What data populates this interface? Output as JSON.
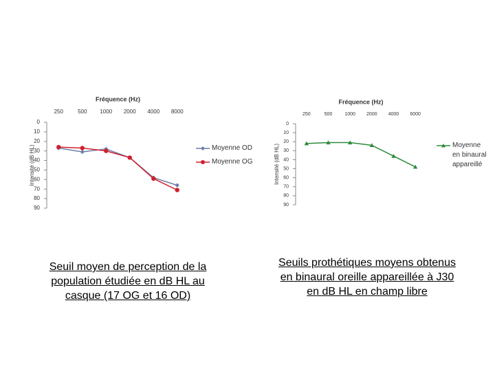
{
  "chart_data": [
    {
      "type": "line",
      "title": "Fréquence (Hz)",
      "y_label": "Intensité (dB HL)",
      "categories": [
        "250",
        "500",
        "1000",
        "2000",
        "4000",
        "8000"
      ],
      "ylim": [
        0,
        90
      ],
      "yticks": [
        0,
        10,
        20,
        30,
        40,
        50,
        60,
        70,
        80,
        90
      ],
      "y_inverted": true,
      "grid": false,
      "series": [
        {
          "name": "Moyenne OD",
          "color": "#6b7fa8",
          "marker": "diamond",
          "values": [
            27,
            31,
            28,
            37,
            58,
            66
          ]
        },
        {
          "name": "Moyenne OG",
          "color": "#d0202e",
          "marker": "circle",
          "values": [
            26,
            27,
            30,
            37,
            59,
            71
          ]
        }
      ]
    },
    {
      "type": "line",
      "title": "Fréquence (Hz)",
      "y_label": "Intensité (dB HL)",
      "categories": [
        "250",
        "500",
        "1000",
        "2000",
        "4000",
        "6000"
      ],
      "ylim": [
        0,
        90
      ],
      "yticks": [
        0,
        10,
        20,
        30,
        40,
        50,
        60,
        70,
        80,
        90
      ],
      "y_inverted": true,
      "grid": false,
      "series": [
        {
          "name": "Moyenne en binaural appareillé",
          "color": "#2e8b3a",
          "marker": "triangle",
          "values": [
            22,
            21,
            21,
            24,
            36,
            48
          ]
        }
      ]
    }
  ],
  "captions": [
    "Seuil moyen de perception de la population étudiée en dB HL au casque (17 OG et 16 OD)",
    "Seuils prothétiques moyens obtenus en binaural oreille appareillée à J30 en dB HL en champ libre"
  ]
}
